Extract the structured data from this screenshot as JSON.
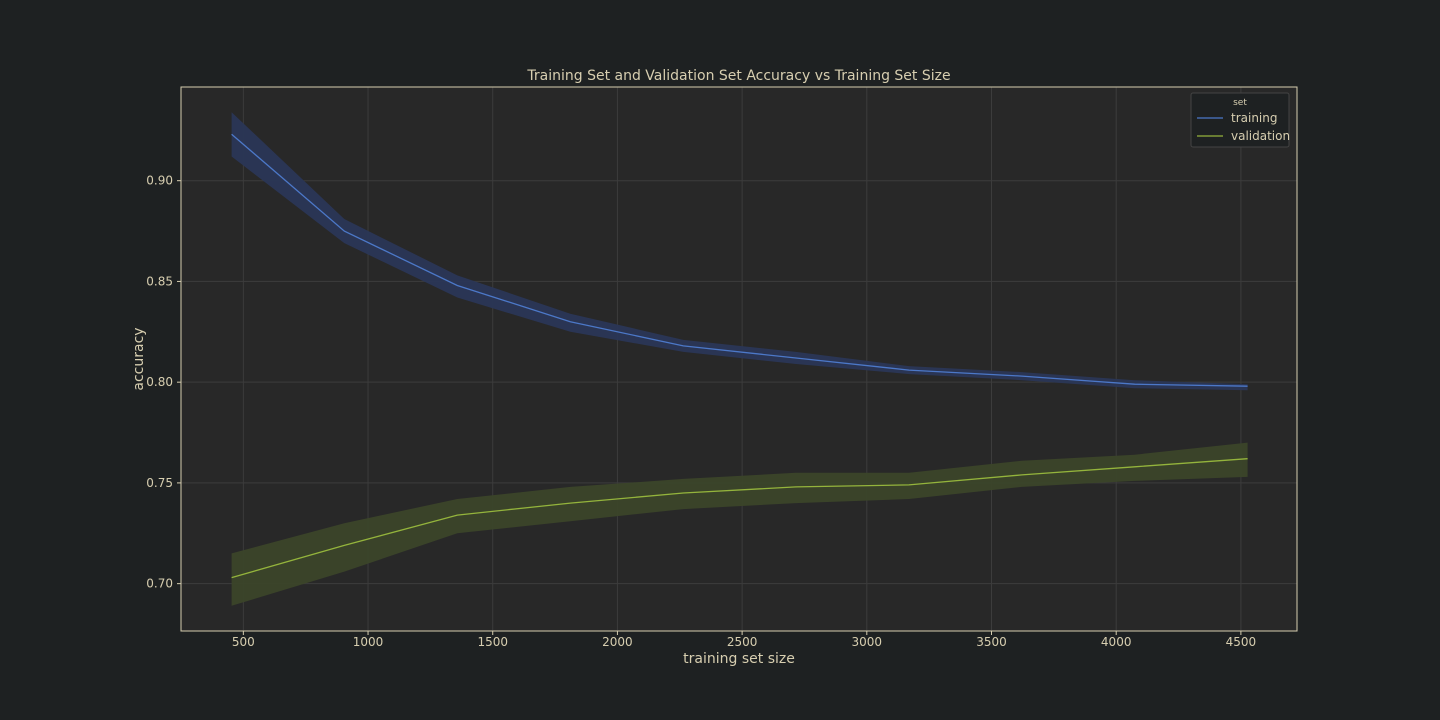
{
  "chart_data": {
    "type": "line",
    "title": "Training Set and Validation Set Accuracy vs Training Set Size",
    "xlabel": "training set size",
    "ylabel": "accuracy",
    "xlim": [
      250,
      4725
    ],
    "ylim": [
      0.6765,
      0.9465
    ],
    "xticks": [
      500,
      1000,
      1500,
      2000,
      2500,
      3000,
      3500,
      4000,
      4500
    ],
    "yticks": [
      0.7,
      0.75,
      0.8,
      0.85,
      0.9
    ],
    "ytick_labels": [
      "0.70",
      "0.75",
      "0.80",
      "0.85",
      "0.90"
    ],
    "x": [
      453,
      905,
      1358,
      1811,
      2264,
      2716,
      3169,
      3622,
      4074,
      4527
    ],
    "grid": true,
    "legend": {
      "title": "set",
      "position": "top-right"
    },
    "series": [
      {
        "name": "training",
        "color": "#4c78c8",
        "values": [
          0.923,
          0.875,
          0.848,
          0.83,
          0.818,
          0.812,
          0.806,
          0.803,
          0.799,
          0.798
        ],
        "lower": [
          0.912,
          0.869,
          0.842,
          0.825,
          0.815,
          0.809,
          0.804,
          0.801,
          0.797,
          0.796
        ],
        "upper": [
          0.934,
          0.881,
          0.853,
          0.834,
          0.821,
          0.815,
          0.808,
          0.805,
          0.801,
          0.799
        ]
      },
      {
        "name": "validation",
        "color": "#94b43c",
        "values": [
          0.703,
          0.719,
          0.734,
          0.74,
          0.745,
          0.748,
          0.749,
          0.754,
          0.758,
          0.762
        ],
        "lower": [
          0.689,
          0.706,
          0.725,
          0.731,
          0.737,
          0.74,
          0.742,
          0.748,
          0.751,
          0.753
        ],
        "upper": [
          0.715,
          0.73,
          0.742,
          0.748,
          0.752,
          0.755,
          0.755,
          0.761,
          0.764,
          0.77
        ]
      }
    ]
  },
  "colors": {
    "background": "#1e2122",
    "plot_background": "#282828",
    "frame": "#d7ceb0",
    "grid": "#3c3c3c",
    "text": "#d7ceb0",
    "training_band": "#2a3656",
    "validation_band": "#3b4429"
  }
}
